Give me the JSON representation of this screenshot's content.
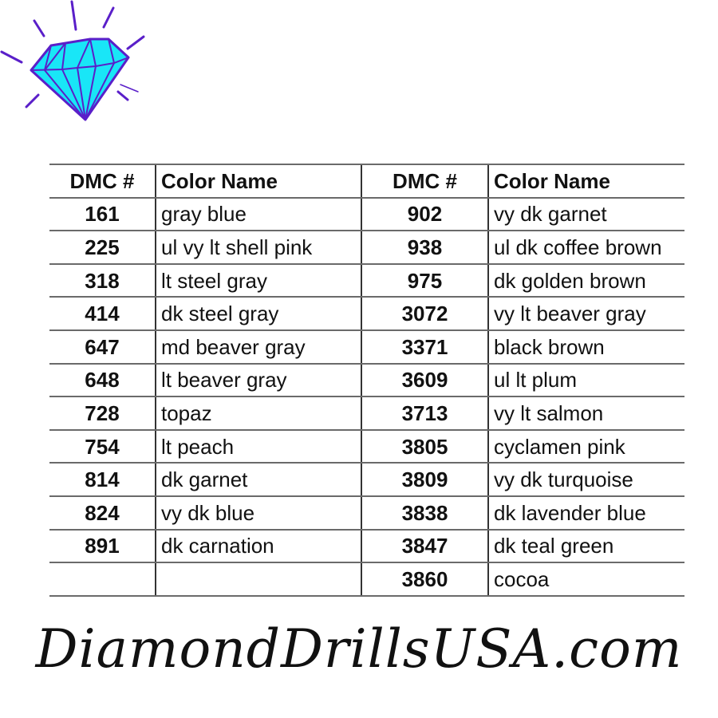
{
  "logo": {
    "icon": "diamond-icon",
    "fill": "#19e6f7",
    "stroke": "#5a1fc9"
  },
  "table": {
    "headers": [
      "DMC #",
      "Color Name",
      "DMC #",
      "Color Name"
    ],
    "left": [
      {
        "dmc": "161",
        "name": "gray blue"
      },
      {
        "dmc": "225",
        "name": "ul vy lt shell pink"
      },
      {
        "dmc": "318",
        "name": "lt steel gray"
      },
      {
        "dmc": "414",
        "name": "dk steel gray"
      },
      {
        "dmc": "647",
        "name": "md beaver gray"
      },
      {
        "dmc": "648",
        "name": "lt beaver gray"
      },
      {
        "dmc": "728",
        "name": "topaz"
      },
      {
        "dmc": "754",
        "name": "lt peach"
      },
      {
        "dmc": "814",
        "name": "dk garnet"
      },
      {
        "dmc": "824",
        "name": "vy dk blue"
      },
      {
        "dmc": "891",
        "name": "dk carnation"
      },
      {
        "dmc": "",
        "name": ""
      }
    ],
    "right": [
      {
        "dmc": "902",
        "name": "vy dk garnet"
      },
      {
        "dmc": "938",
        "name": "ul dk coffee brown"
      },
      {
        "dmc": "975",
        "name": "dk golden brown"
      },
      {
        "dmc": "3072",
        "name": "vy lt beaver gray"
      },
      {
        "dmc": "3371",
        "name": "black brown"
      },
      {
        "dmc": "3609",
        "name": "ul lt plum"
      },
      {
        "dmc": "3713",
        "name": "vy lt salmon"
      },
      {
        "dmc": "3805",
        "name": "cyclamen pink"
      },
      {
        "dmc": "3809",
        "name": "vy dk turquoise"
      },
      {
        "dmc": "3838",
        "name": "dk lavender blue"
      },
      {
        "dmc": "3847",
        "name": "dk teal green"
      },
      {
        "dmc": "3860",
        "name": "cocoa"
      }
    ]
  },
  "footer": {
    "text": "DiamondDrillsUSA.com"
  }
}
